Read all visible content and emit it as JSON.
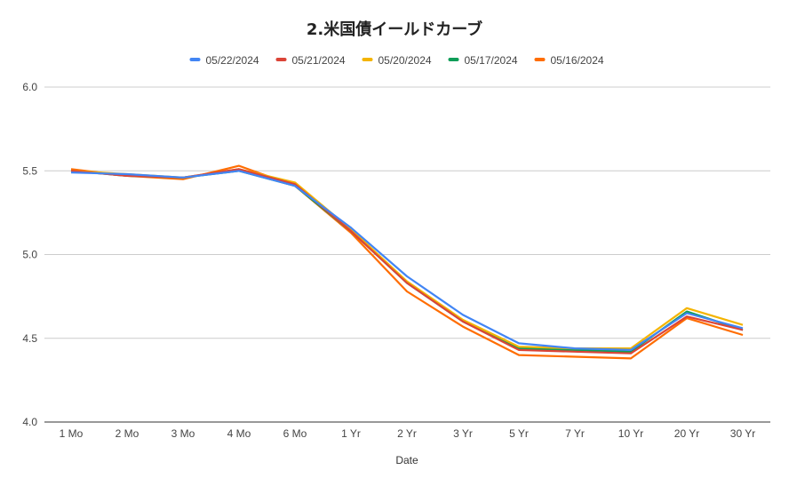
{
  "chart_data": {
    "type": "line",
    "title": "2.米国債イールドカーブ",
    "xlabel": "Date",
    "ylabel": "",
    "categories": [
      "1 Mo",
      "2 Mo",
      "3 Mo",
      "4 Mo",
      "6 Mo",
      "1 Yr",
      "2 Yr",
      "3 Yr",
      "5 Yr",
      "7 Yr",
      "10 Yr",
      "20 Yr",
      "30 Yr"
    ],
    "ylim": [
      4.0,
      6.0
    ],
    "yticks": [
      "4.0",
      "4.5",
      "5.0",
      "5.5",
      "6.0"
    ],
    "grid": true,
    "legend_position": "top",
    "series": [
      {
        "name": "05/22/2024",
        "color": "#4285F4",
        "values": [
          5.49,
          5.48,
          5.46,
          5.5,
          5.41,
          5.16,
          4.87,
          4.64,
          4.47,
          4.44,
          4.43,
          4.65,
          4.56
        ]
      },
      {
        "name": "05/21/2024",
        "color": "#DB4437",
        "values": [
          5.5,
          5.47,
          5.46,
          5.51,
          5.42,
          5.14,
          4.83,
          4.6,
          4.43,
          4.42,
          4.41,
          4.63,
          4.55
        ]
      },
      {
        "name": "05/20/2024",
        "color": "#F4B400",
        "values": [
          5.5,
          5.48,
          5.46,
          5.51,
          5.43,
          5.15,
          4.84,
          4.61,
          4.45,
          4.44,
          4.44,
          4.68,
          4.58
        ]
      },
      {
        "name": "05/17/2024",
        "color": "#0F9D58",
        "values": [
          5.5,
          5.47,
          5.46,
          5.5,
          5.41,
          5.14,
          4.83,
          4.6,
          4.44,
          4.43,
          4.42,
          4.66,
          4.55
        ]
      },
      {
        "name": "05/16/2024",
        "color": "#FF6D01",
        "values": [
          5.51,
          5.47,
          5.45,
          5.53,
          5.41,
          5.13,
          4.78,
          4.57,
          4.4,
          4.39,
          4.38,
          4.62,
          4.52
        ]
      }
    ]
  }
}
